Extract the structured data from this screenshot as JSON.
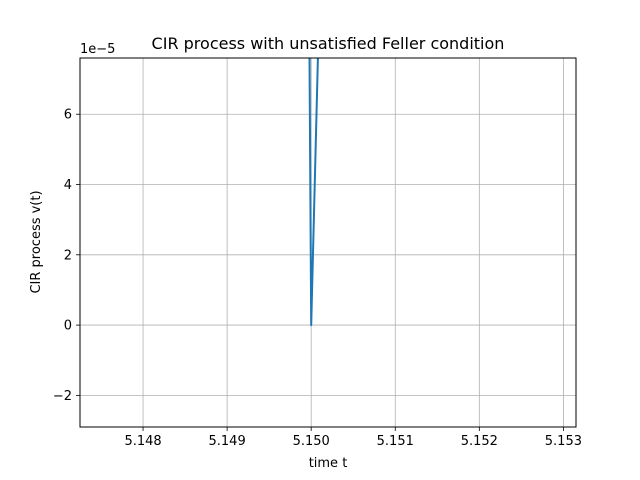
{
  "chart_data": {
    "type": "line",
    "title": "CIR process with unsatisfied Feller condition",
    "xlabel": "time t",
    "ylabel": "CIR process v(t)",
    "y_offset_label": "1e−5",
    "grid": true,
    "xlim": [
      5.14725,
      5.15315
    ],
    "ylim": [
      -2.9e-05,
      7.6e-05
    ],
    "x_ticks": [
      5.148,
      5.149,
      5.15,
      5.151,
      5.152,
      5.153
    ],
    "x_tick_labels": [
      "5.148",
      "5.149",
      "5.150",
      "5.151",
      "5.152",
      "5.153"
    ],
    "y_ticks": [
      -2e-05,
      0,
      2e-05,
      4e-05,
      6e-05
    ],
    "y_tick_labels": [
      "−2",
      "0",
      "2",
      "4",
      "6"
    ],
    "series": [
      {
        "color": "#1f77b4",
        "x": [
          5.14998,
          5.15,
          5.15008
        ],
        "y": [
          7.6e-05,
          0,
          7.6e-05
        ]
      }
    ]
  }
}
